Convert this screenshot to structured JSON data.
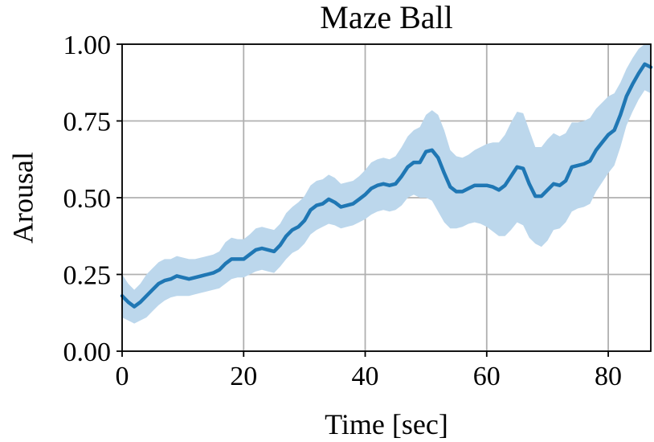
{
  "chart_data": {
    "type": "line",
    "title": "Maze Ball",
    "xlabel": "Time [sec]",
    "ylabel": "Arousal",
    "xlim": [
      0,
      87
    ],
    "ylim": [
      0,
      1
    ],
    "xticks": [
      0,
      20,
      40,
      60,
      80
    ],
    "yticks": [
      0,
      0.25,
      0.5,
      0.75,
      1.0
    ],
    "xtick_labels": [
      "0",
      "20",
      "40",
      "60",
      "80"
    ],
    "ytick_labels": [
      "0.00",
      "0.25",
      "0.50",
      "0.75",
      "1.00"
    ],
    "grid": true,
    "colors": {
      "line": "#1f77b4",
      "band": "#bcd7ec",
      "grid": "#b0b0b0"
    },
    "series": [
      {
        "x": [
          0,
          1,
          2,
          3,
          4,
          5,
          6,
          7,
          8,
          9,
          10,
          11,
          12,
          13,
          14,
          15,
          16,
          17,
          18,
          19,
          20,
          21,
          22,
          23,
          24,
          25,
          26,
          27,
          28,
          29,
          30,
          31,
          32,
          33,
          34,
          35,
          36,
          37,
          38,
          39,
          40,
          41,
          42,
          43,
          44,
          45,
          46,
          47,
          48,
          49,
          50,
          51,
          52,
          53,
          54,
          55,
          56,
          57,
          58,
          59,
          60,
          61,
          62,
          63,
          64,
          65,
          66,
          67,
          68,
          69,
          70,
          71,
          72,
          73,
          74,
          75,
          76,
          77,
          78,
          79,
          80,
          81,
          82,
          83,
          84,
          85,
          86,
          87
        ],
        "values": [
          0.18,
          0.16,
          0.145,
          0.16,
          0.18,
          0.2,
          0.22,
          0.23,
          0.235,
          0.245,
          0.24,
          0.235,
          0.24,
          0.245,
          0.25,
          0.255,
          0.265,
          0.285,
          0.3,
          0.3,
          0.3,
          0.315,
          0.33,
          0.335,
          0.33,
          0.325,
          0.345,
          0.375,
          0.395,
          0.405,
          0.425,
          0.46,
          0.475,
          0.48,
          0.495,
          0.485,
          0.47,
          0.475,
          0.48,
          0.495,
          0.51,
          0.53,
          0.54,
          0.545,
          0.54,
          0.545,
          0.57,
          0.6,
          0.615,
          0.615,
          0.65,
          0.655,
          0.63,
          0.58,
          0.535,
          0.52,
          0.52,
          0.53,
          0.54,
          0.54,
          0.54,
          0.535,
          0.525,
          0.54,
          0.57,
          0.6,
          0.595,
          0.545,
          0.505,
          0.505,
          0.525,
          0.545,
          0.54,
          0.555,
          0.6,
          0.605,
          0.61,
          0.62,
          0.655,
          0.68,
          0.705,
          0.72,
          0.77,
          0.83,
          0.87,
          0.905,
          0.935,
          0.925
        ],
        "lower": [
          0.11,
          0.1,
          0.09,
          0.1,
          0.11,
          0.13,
          0.15,
          0.165,
          0.175,
          0.18,
          0.18,
          0.18,
          0.185,
          0.19,
          0.195,
          0.2,
          0.205,
          0.22,
          0.235,
          0.24,
          0.24,
          0.25,
          0.26,
          0.265,
          0.26,
          0.255,
          0.275,
          0.3,
          0.32,
          0.33,
          0.35,
          0.38,
          0.395,
          0.405,
          0.415,
          0.41,
          0.4,
          0.405,
          0.41,
          0.42,
          0.43,
          0.445,
          0.455,
          0.46,
          0.455,
          0.46,
          0.475,
          0.5,
          0.51,
          0.5,
          0.5,
          0.49,
          0.455,
          0.42,
          0.4,
          0.4,
          0.405,
          0.415,
          0.42,
          0.415,
          0.405,
          0.39,
          0.375,
          0.375,
          0.395,
          0.42,
          0.41,
          0.37,
          0.35,
          0.34,
          0.36,
          0.395,
          0.4,
          0.42,
          0.455,
          0.465,
          0.47,
          0.48,
          0.52,
          0.55,
          0.58,
          0.605,
          0.665,
          0.735,
          0.78,
          0.82,
          0.85,
          0.84
        ],
        "upper": [
          0.25,
          0.22,
          0.2,
          0.22,
          0.25,
          0.27,
          0.29,
          0.3,
          0.3,
          0.31,
          0.305,
          0.3,
          0.3,
          0.305,
          0.31,
          0.315,
          0.325,
          0.355,
          0.37,
          0.365,
          0.365,
          0.38,
          0.4,
          0.405,
          0.4,
          0.395,
          0.415,
          0.45,
          0.47,
          0.485,
          0.505,
          0.54,
          0.555,
          0.56,
          0.575,
          0.565,
          0.545,
          0.55,
          0.555,
          0.57,
          0.59,
          0.615,
          0.625,
          0.63,
          0.625,
          0.635,
          0.665,
          0.7,
          0.72,
          0.73,
          0.77,
          0.785,
          0.77,
          0.72,
          0.655,
          0.635,
          0.63,
          0.64,
          0.655,
          0.665,
          0.675,
          0.68,
          0.68,
          0.705,
          0.745,
          0.78,
          0.775,
          0.72,
          0.665,
          0.665,
          0.69,
          0.71,
          0.7,
          0.71,
          0.745,
          0.745,
          0.75,
          0.76,
          0.79,
          0.81,
          0.83,
          0.84,
          0.875,
          0.92,
          0.955,
          0.985,
          1.0,
          1.0
        ]
      }
    ]
  }
}
